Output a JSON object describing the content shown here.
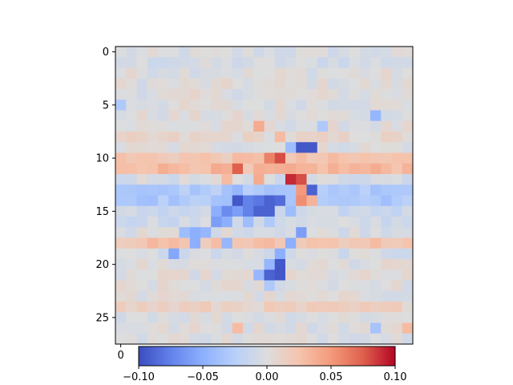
{
  "chart_data": {
    "type": "heatmap",
    "title": "",
    "xlabel": "",
    "ylabel": "",
    "n_rows": 28,
    "n_cols": 28,
    "colormap": "coolwarm",
    "vmin": -0.1,
    "vmax": 0.1,
    "y_ticks": [
      "0",
      "5",
      "10",
      "15",
      "20",
      "25"
    ],
    "x_ticks_visible": [
      "0"
    ],
    "colorbar": {
      "orientation": "horizontal",
      "ticks": [
        "−0.10",
        "−0.05",
        "0.00",
        "0.05",
        "0.10"
      ],
      "tick_values": [
        -0.1,
        -0.05,
        0.0,
        0.05,
        0.1
      ]
    },
    "features": [
      {
        "row": 9,
        "col": 17,
        "value": -0.095
      },
      {
        "row": 9,
        "col": 18,
        "value": -0.095
      },
      {
        "row": 9,
        "col": 16,
        "value": -0.04
      },
      {
        "row": 10,
        "col": 14,
        "value": 0.06
      },
      {
        "row": 10,
        "col": 15,
        "value": 0.08
      },
      {
        "row": 10,
        "col": 12,
        "value": 0.03
      },
      {
        "row": 10,
        "col": 16,
        "value": 0.02
      },
      {
        "row": 11,
        "col": 11,
        "value": 0.075
      },
      {
        "row": 11,
        "col": 12,
        "value": 0.02
      },
      {
        "row": 12,
        "col": 16,
        "value": 0.09
      },
      {
        "row": 12,
        "col": 17,
        "value": 0.08
      },
      {
        "row": 12,
        "col": 13,
        "value": 0.04
      },
      {
        "row": 12,
        "col": 10,
        "value": 0.03
      },
      {
        "row": 13,
        "col": 18,
        "value": -0.09
      },
      {
        "row": 13,
        "col": 17,
        "value": 0.05
      },
      {
        "row": 13,
        "col": 11,
        "value": -0.045
      },
      {
        "row": 14,
        "col": 11,
        "value": -0.095
      },
      {
        "row": 14,
        "col": 12,
        "value": -0.075
      },
      {
        "row": 14,
        "col": 13,
        "value": -0.08
      },
      {
        "row": 14,
        "col": 14,
        "value": -0.09
      },
      {
        "row": 14,
        "col": 15,
        "value": -0.085
      },
      {
        "row": 14,
        "col": 17,
        "value": 0.055
      },
      {
        "row": 14,
        "col": 18,
        "value": 0.035
      },
      {
        "row": 15,
        "col": 10,
        "value": -0.07
      },
      {
        "row": 15,
        "col": 11,
        "value": -0.06
      },
      {
        "row": 15,
        "col": 12,
        "value": -0.075
      },
      {
        "row": 15,
        "col": 13,
        "value": -0.09
      },
      {
        "row": 15,
        "col": 14,
        "value": -0.09
      },
      {
        "row": 15,
        "col": 9,
        "value": -0.05
      },
      {
        "row": 15,
        "col": 16,
        "value": -0.04
      },
      {
        "row": 16,
        "col": 9,
        "value": -0.06
      },
      {
        "row": 16,
        "col": 10,
        "value": -0.05
      },
      {
        "row": 16,
        "col": 12,
        "value": -0.04
      },
      {
        "row": 16,
        "col": 14,
        "value": -0.03
      },
      {
        "row": 17,
        "col": 6,
        "value": -0.04
      },
      {
        "row": 17,
        "col": 7,
        "value": -0.05
      },
      {
        "row": 17,
        "col": 8,
        "value": -0.045
      },
      {
        "row": 17,
        "col": 17,
        "value": -0.06
      },
      {
        "row": 18,
        "col": 7,
        "value": -0.05
      },
      {
        "row": 18,
        "col": 10,
        "value": -0.045
      },
      {
        "row": 18,
        "col": 16,
        "value": -0.05
      },
      {
        "row": 19,
        "col": 5,
        "value": -0.055
      },
      {
        "row": 19,
        "col": 15,
        "value": -0.05
      },
      {
        "row": 20,
        "col": 15,
        "value": -0.095
      },
      {
        "row": 20,
        "col": 14,
        "value": -0.045
      },
      {
        "row": 21,
        "col": 14,
        "value": -0.09
      },
      {
        "row": 21,
        "col": 15,
        "value": -0.095
      },
      {
        "row": 21,
        "col": 13,
        "value": -0.045
      },
      {
        "row": 22,
        "col": 14,
        "value": -0.03
      },
      {
        "row": 5,
        "col": 0,
        "value": -0.03
      },
      {
        "row": 6,
        "col": 24,
        "value": -0.045
      },
      {
        "row": 7,
        "col": 13,
        "value": 0.04
      },
      {
        "row": 8,
        "col": 15,
        "value": 0.03
      },
      {
        "row": 7,
        "col": 19,
        "value": -0.03
      },
      {
        "row": 26,
        "col": 24,
        "value": -0.035
      },
      {
        "row": 26,
        "col": 27,
        "value": 0.03
      },
      {
        "row": 26,
        "col": 11,
        "value": 0.03
      }
    ],
    "row_bias": {
      "10": 0.022,
      "11": 0.032,
      "12": -0.005,
      "13": -0.028,
      "14": -0.03,
      "15": -0.012,
      "16": -0.008,
      "17": -0.002,
      "18": 0.024,
      "19": -0.006,
      "24": 0.012,
      "0": -0.004,
      "1": -0.006,
      "8": 0.006
    }
  }
}
